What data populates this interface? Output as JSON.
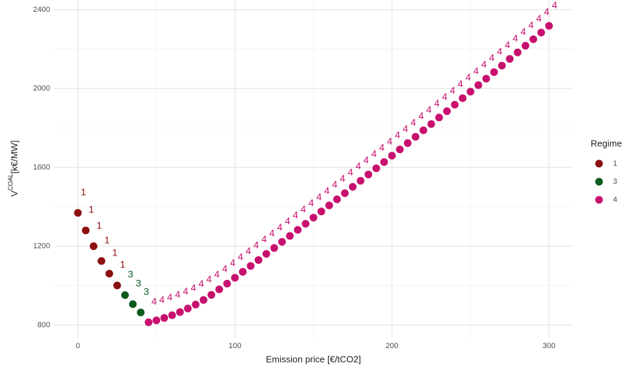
{
  "chart_data": {
    "type": "scatter",
    "x_label": "Emission price [€/tCO2]",
    "y_label": {
      "base": "V",
      "sup": "COAL",
      "unit": "[k€/MW]"
    },
    "legend_title": "Regime",
    "legend_position": "right",
    "grid": true,
    "xlim": [
      -15,
      315
    ],
    "xticks": [
      0,
      100,
      200,
      300
    ],
    "xminor": [
      50,
      150,
      250
    ],
    "ylim": [
      736,
      2449
    ],
    "yticks": [
      800,
      1200,
      1600,
      2000,
      2400
    ],
    "yminor": [
      1000,
      1400,
      1800,
      2200
    ],
    "series": [
      {
        "name": "1",
        "color": "#8b1010",
        "x": [
          0,
          5,
          10,
          15,
          20,
          25
        ],
        "values": [
          1369,
          1280,
          1200,
          1125,
          1061,
          1001
        ]
      },
      {
        "name": "3",
        "color": "#0d5a1e",
        "x": [
          30,
          35,
          40
        ],
        "values": [
          952,
          906,
          864
        ]
      },
      {
        "name": "4",
        "color": "#c8106e",
        "x": [
          45,
          50,
          55,
          60,
          65,
          70,
          75,
          80,
          85,
          90,
          95,
          100,
          105,
          110,
          115,
          120,
          125,
          130,
          135,
          140,
          145,
          150,
          155,
          160,
          165,
          170,
          175,
          180,
          185,
          190,
          195,
          200,
          205,
          210,
          215,
          220,
          225,
          230,
          235,
          240,
          245,
          250,
          255,
          260,
          265,
          270,
          275,
          280,
          285,
          290,
          295,
          300
        ],
        "values": [
          814,
          824,
          836,
          850,
          866,
          884,
          904,
          927,
          953,
          981,
          1010,
          1040,
          1070,
          1100,
          1130,
          1161,
          1191,
          1222,
          1252,
          1283,
          1314,
          1345,
          1376,
          1407,
          1438,
          1469,
          1501,
          1532,
          1564,
          1595,
          1627,
          1659,
          1691,
          1723,
          1755,
          1788,
          1820,
          1853,
          1885,
          1918,
          1951,
          1984,
          2017,
          2050,
          2083,
          2116,
          2150,
          2183,
          2217,
          2250,
          2284,
          2318
        ]
      }
    ]
  }
}
